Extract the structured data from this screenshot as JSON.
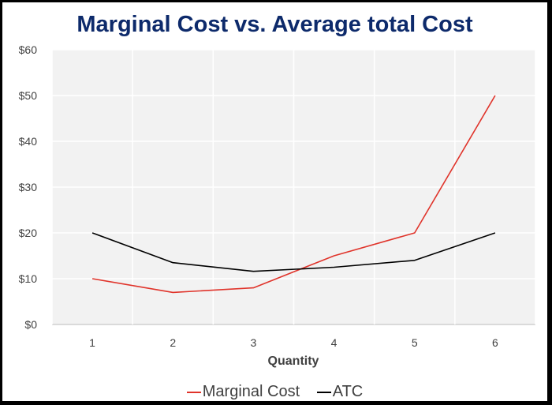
{
  "chart_data": {
    "type": "line",
    "title": "Marginal Cost vs. Average total Cost",
    "xlabel": "Quantity",
    "ylabel": "",
    "x": [
      1,
      2,
      3,
      4,
      5,
      6
    ],
    "x_tick_labels": [
      "1",
      "2",
      "3",
      "4",
      "5",
      "6"
    ],
    "y_tick_labels": [
      "$0",
      "$10",
      "$20",
      "$30",
      "$40",
      "$50",
      "$60"
    ],
    "ylim": [
      0,
      60
    ],
    "grid": true,
    "legend_position": "bottom",
    "series": [
      {
        "name": "Marginal Cost",
        "color": "#e0342b",
        "values": [
          10,
          7,
          8,
          15,
          20,
          50
        ]
      },
      {
        "name": "ATC",
        "color": "#000000",
        "values": [
          20,
          13.5,
          11.6,
          12.5,
          14,
          20
        ]
      }
    ]
  }
}
